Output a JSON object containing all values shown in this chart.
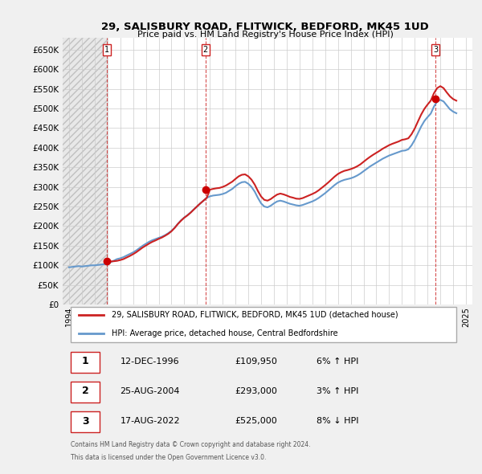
{
  "title": "29, SALISBURY ROAD, FLITWICK, BEDFORD, MK45 1UD",
  "subtitle": "Price paid vs. HM Land Registry's House Price Index (HPI)",
  "legend_line1": "29, SALISBURY ROAD, FLITWICK, BEDFORD, MK45 1UD (detached house)",
  "legend_line2": "HPI: Average price, detached house, Central Bedfordshire",
  "footer1": "Contains HM Land Registry data © Crown copyright and database right 2024.",
  "footer2": "This data is licensed under the Open Government Licence v3.0.",
  "transactions": [
    {
      "num": 1,
      "date": "12-DEC-1996",
      "price": 109950,
      "pct": "6%",
      "dir": "↑"
    },
    {
      "num": 2,
      "date": "25-AUG-2004",
      "price": 293000,
      "pct": "3%",
      "dir": "↑"
    },
    {
      "num": 3,
      "date": "17-AUG-2022",
      "price": 525000,
      "pct": "8%",
      "dir": "↓"
    }
  ],
  "sale_dates_decimal": [
    1996.95,
    2004.65,
    2022.63
  ],
  "sale_prices": [
    109950,
    293000,
    525000
  ],
  "hpi_x": [
    1994.0,
    1994.25,
    1994.5,
    1994.75,
    1995.0,
    1995.25,
    1995.5,
    1995.75,
    1996.0,
    1996.25,
    1996.5,
    1996.75,
    1997.0,
    1997.25,
    1997.5,
    1997.75,
    1998.0,
    1998.25,
    1998.5,
    1998.75,
    1999.0,
    1999.25,
    1999.5,
    1999.75,
    2000.0,
    2000.25,
    2000.5,
    2000.75,
    2001.0,
    2001.25,
    2001.5,
    2001.75,
    2002.0,
    2002.25,
    2002.5,
    2002.75,
    2003.0,
    2003.25,
    2003.5,
    2003.75,
    2004.0,
    2004.25,
    2004.5,
    2004.75,
    2005.0,
    2005.25,
    2005.5,
    2005.75,
    2006.0,
    2006.25,
    2006.5,
    2006.75,
    2007.0,
    2007.25,
    2007.5,
    2007.75,
    2008.0,
    2008.25,
    2008.5,
    2008.75,
    2009.0,
    2009.25,
    2009.5,
    2009.75,
    2010.0,
    2010.25,
    2010.5,
    2010.75,
    2011.0,
    2011.25,
    2011.5,
    2011.75,
    2012.0,
    2012.25,
    2012.5,
    2012.75,
    2013.0,
    2013.25,
    2013.5,
    2013.75,
    2014.0,
    2014.25,
    2014.5,
    2014.75,
    2015.0,
    2015.25,
    2015.5,
    2015.75,
    2016.0,
    2016.25,
    2016.5,
    2016.75,
    2017.0,
    2017.25,
    2017.5,
    2017.75,
    2018.0,
    2018.25,
    2018.5,
    2018.75,
    2019.0,
    2019.25,
    2019.5,
    2019.75,
    2020.0,
    2020.25,
    2020.5,
    2020.75,
    2021.0,
    2021.25,
    2021.5,
    2021.75,
    2022.0,
    2022.25,
    2022.5,
    2022.75,
    2023.0,
    2023.25,
    2023.5,
    2023.75,
    2024.0,
    2024.25
  ],
  "hpi_y": [
    95000,
    96000,
    97000,
    98000,
    97000,
    98000,
    99000,
    100000,
    100000,
    101000,
    102000,
    103000,
    105000,
    108000,
    112000,
    116000,
    118000,
    121000,
    125000,
    129000,
    133000,
    138000,
    144000,
    150000,
    155000,
    160000,
    164000,
    167000,
    170000,
    173000,
    177000,
    182000,
    188000,
    196000,
    206000,
    215000,
    222000,
    228000,
    235000,
    243000,
    250000,
    258000,
    265000,
    272000,
    276000,
    278000,
    279000,
    280000,
    282000,
    285000,
    290000,
    295000,
    302000,
    308000,
    312000,
    313000,
    308000,
    300000,
    288000,
    272000,
    258000,
    250000,
    248000,
    252000,
    258000,
    263000,
    265000,
    263000,
    260000,
    257000,
    255000,
    253000,
    252000,
    254000,
    257000,
    260000,
    263000,
    267000,
    272000,
    278000,
    284000,
    291000,
    298000,
    305000,
    311000,
    315000,
    318000,
    320000,
    322000,
    325000,
    329000,
    334000,
    340000,
    346000,
    352000,
    357000,
    362000,
    367000,
    372000,
    376000,
    380000,
    383000,
    386000,
    389000,
    392000,
    393000,
    396000,
    406000,
    420000,
    437000,
    454000,
    468000,
    478000,
    487000,
    505000,
    518000,
    522000,
    518000,
    508000,
    498000,
    492000,
    488000
  ],
  "price_paid_x": [
    1994.0,
    1994.25,
    1994.5,
    1994.75,
    1995.0,
    1995.25,
    1995.5,
    1995.75,
    1996.0,
    1996.25,
    1996.5,
    1996.75,
    1997.0,
    1997.25,
    1997.5,
    1997.75,
    1998.0,
    1998.25,
    1998.5,
    1998.75,
    1999.0,
    1999.25,
    1999.5,
    1999.75,
    2000.0,
    2000.25,
    2000.5,
    2000.75,
    2001.0,
    2001.25,
    2001.5,
    2001.75,
    2002.0,
    2002.25,
    2002.5,
    2002.75,
    2003.0,
    2003.25,
    2003.5,
    2003.75,
    2004.0,
    2004.25,
    2004.5,
    2004.75,
    2005.0,
    2005.25,
    2005.5,
    2005.75,
    2006.0,
    2006.25,
    2006.5,
    2006.75,
    2007.0,
    2007.25,
    2007.5,
    2007.75,
    2008.0,
    2008.25,
    2008.5,
    2008.75,
    2009.0,
    2009.25,
    2009.5,
    2009.75,
    2010.0,
    2010.25,
    2010.5,
    2010.75,
    2011.0,
    2011.25,
    2011.5,
    2011.75,
    2012.0,
    2012.25,
    2012.5,
    2012.75,
    2013.0,
    2013.25,
    2013.5,
    2013.75,
    2014.0,
    2014.25,
    2014.5,
    2014.75,
    2015.0,
    2015.25,
    2015.5,
    2015.75,
    2016.0,
    2016.25,
    2016.5,
    2016.75,
    2017.0,
    2017.25,
    2017.5,
    2017.75,
    2018.0,
    2018.25,
    2018.5,
    2018.75,
    2019.0,
    2019.25,
    2019.5,
    2019.75,
    2020.0,
    2020.25,
    2020.5,
    2020.75,
    2021.0,
    2021.25,
    2021.5,
    2021.75,
    2022.0,
    2022.25,
    2022.5,
    2022.75,
    2023.0,
    2023.25,
    2023.5,
    2023.75,
    2024.0,
    2024.25
  ],
  "price_paid_y": [
    null,
    null,
    null,
    null,
    null,
    null,
    null,
    null,
    null,
    null,
    null,
    null,
    109950,
    109950,
    110500,
    111500,
    113500,
    116000,
    120000,
    124000,
    128500,
    133500,
    139500,
    145500,
    150500,
    155500,
    160000,
    163500,
    167500,
    171000,
    175500,
    180500,
    187000,
    195500,
    205500,
    214000,
    221500,
    227500,
    234500,
    242500,
    250500,
    258000,
    265000,
    272000,
    293000,
    295000,
    296500,
    297500,
    300000,
    303500,
    308500,
    313500,
    320500,
    327000,
    331000,
    332000,
    327000,
    318500,
    306000,
    289500,
    275500,
    267000,
    265000,
    269000,
    275000,
    280500,
    283000,
    281000,
    278000,
    274500,
    272500,
    270000,
    269500,
    271500,
    275000,
    278500,
    282000,
    286000,
    291500,
    298000,
    304500,
    311500,
    319000,
    326500,
    333000,
    337500,
    341000,
    343000,
    345500,
    348500,
    352500,
    357500,
    364000,
    370500,
    376500,
    382000,
    387000,
    392000,
    397500,
    402000,
    406500,
    410000,
    413000,
    416000,
    420000,
    421500,
    424000,
    434500,
    449000,
    467000,
    484500,
    499000,
    510000,
    520000,
    539000,
    552000,
    557000,
    552000,
    541000,
    531000,
    524000,
    520000
  ],
  "ylim": [
    0,
    680000
  ],
  "xlim": [
    1993.5,
    2025.5
  ],
  "yticks": [
    0,
    50000,
    100000,
    150000,
    200000,
    250000,
    300000,
    350000,
    400000,
    450000,
    500000,
    550000,
    600000,
    650000
  ],
  "xticks": [
    1994,
    1995,
    1996,
    1997,
    1998,
    1999,
    2000,
    2001,
    2002,
    2003,
    2004,
    2005,
    2006,
    2007,
    2008,
    2009,
    2010,
    2011,
    2012,
    2013,
    2014,
    2015,
    2016,
    2017,
    2018,
    2019,
    2020,
    2021,
    2022,
    2023,
    2024,
    2025
  ],
  "bg_color": "#f0f0f0",
  "plot_bg": "#ffffff",
  "hpi_color": "#6699cc",
  "price_color": "#cc2222",
  "marker_color": "#cc0000",
  "dashed_color": "#cc2222",
  "hatched_color": "#d0d0d0",
  "grid_color": "#cccccc"
}
